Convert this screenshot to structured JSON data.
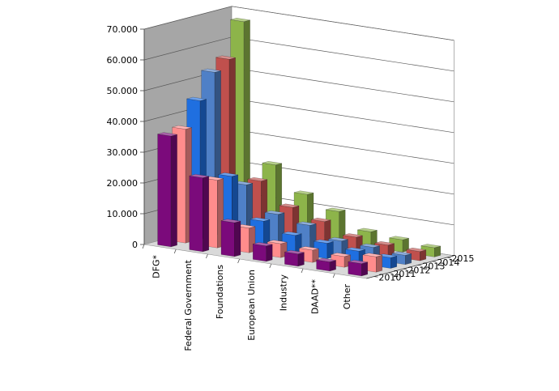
{
  "chart_data": {
    "type": "bar",
    "title": "",
    "xlabel": "",
    "ylabel": "",
    "ylim": [
      0,
      70000
    ],
    "y_ticks": [
      "0",
      "10.000",
      "20.000",
      "30.000",
      "40.000",
      "50.000",
      "60.000",
      "70.000"
    ],
    "grid": true,
    "projection": "3d",
    "categories": [
      "DFG*",
      "Federal Government",
      "Foundations",
      "European Union",
      "Industry",
      "DAAD**",
      "Other"
    ],
    "series": [
      {
        "name": "2010",
        "color": "#7b0a7b",
        "values": [
          36000,
          24000,
          11000,
          5000,
          4000,
          3000,
          4000
        ]
      },
      {
        "name": "2011",
        "color": "#ff8c8c",
        "values": [
          37000,
          22000,
          8000,
          4500,
          4000,
          3500,
          5000
        ]
      },
      {
        "name": "2012",
        "color": "#1f6fe0",
        "values": [
          45000,
          22000,
          9000,
          6000,
          5000,
          4000,
          3500
        ]
      },
      {
        "name": "2013",
        "color": "#4f80c7",
        "values": [
          53000,
          18000,
          10000,
          8000,
          4500,
          4000,
          3000
        ]
      },
      {
        "name": "2014",
        "color": "#c0504d",
        "values": [
          56000,
          18000,
          11000,
          8000,
          4500,
          3500,
          3000
        ]
      },
      {
        "name": "2015",
        "color": "#8db44a",
        "values": [
          67000,
          22000,
          14000,
          10000,
          5000,
          4000,
          3000
        ]
      }
    ]
  }
}
